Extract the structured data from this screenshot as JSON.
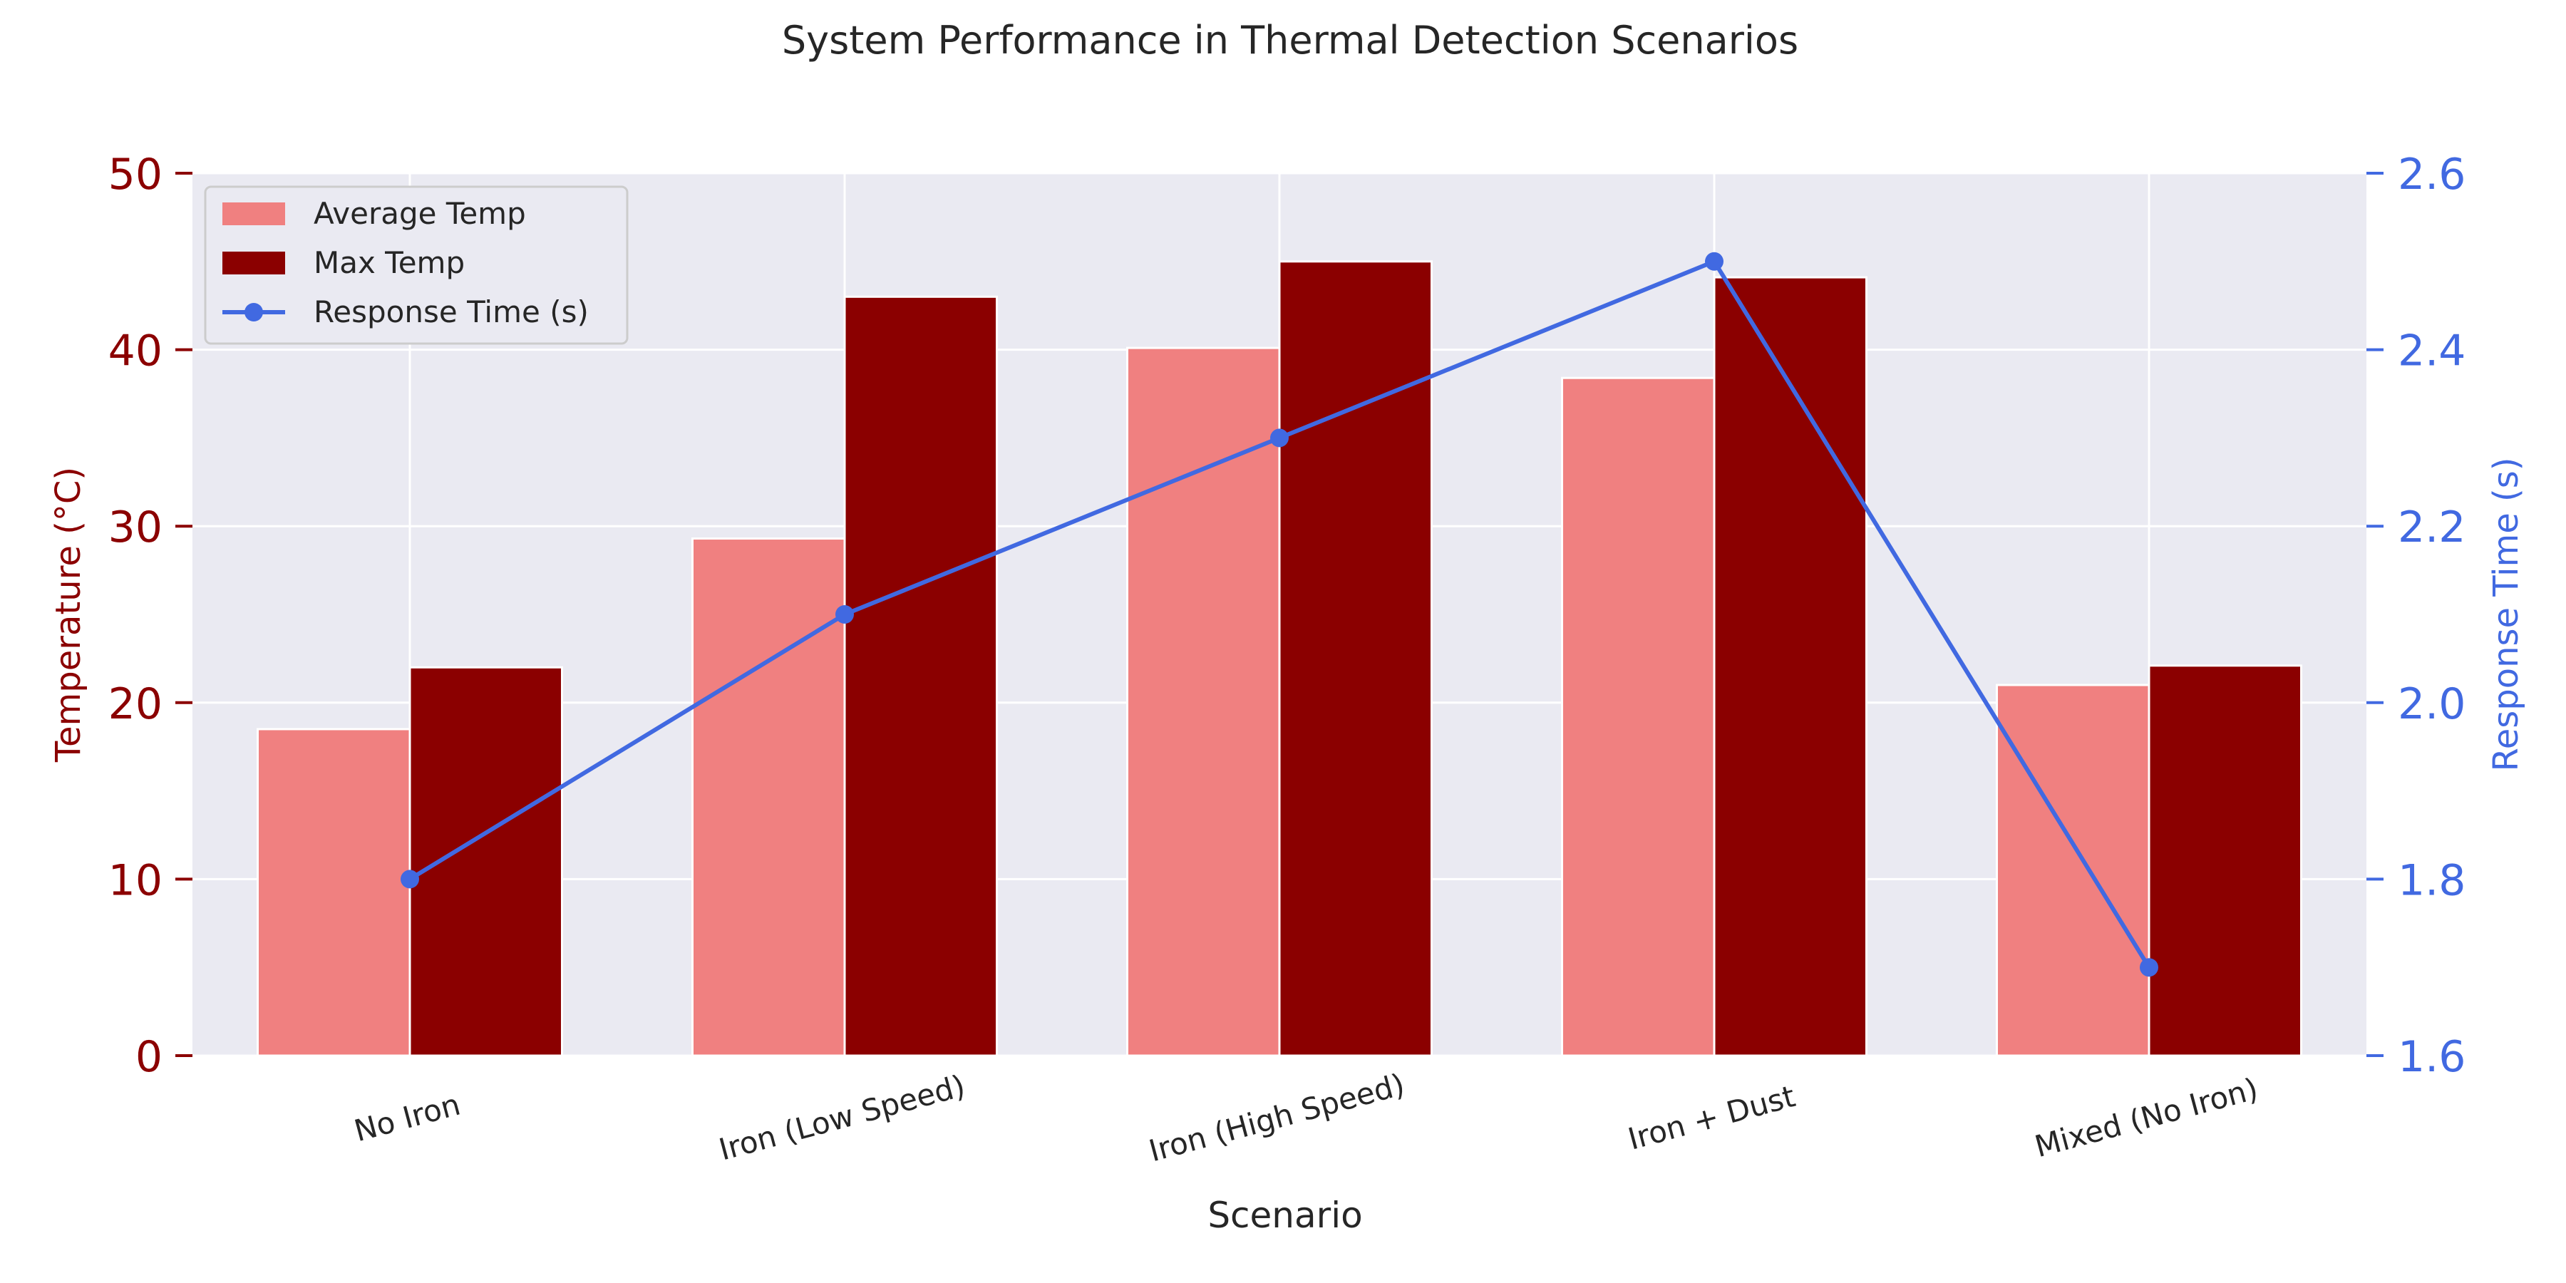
{
  "chart_data": {
    "type": "bar",
    "title": "System Performance in Thermal Detection Scenarios",
    "xlabel": "Scenario",
    "ylabel": "Temperature (°C)",
    "ylabel_right": "Response Time (s)",
    "categories": [
      "No Iron",
      "Iron (Low Speed)",
      "Iron (High Speed)",
      "Iron + Dust",
      "Mixed (No Iron)"
    ],
    "series": [
      {
        "name": "Average Temp",
        "type": "bar",
        "axis": "left",
        "color": "#f08080",
        "values": [
          18.5,
          29.3,
          40.1,
          38.4,
          21.0
        ]
      },
      {
        "name": "Max Temp",
        "type": "bar",
        "axis": "left",
        "color": "#8b0000",
        "values": [
          22.0,
          43.0,
          45.0,
          44.1,
          22.1
        ]
      },
      {
        "name": "Response Time (s)",
        "type": "line",
        "axis": "right",
        "color": "#4169e1",
        "values": [
          1.8,
          2.1,
          2.3,
          2.5,
          1.7
        ]
      }
    ],
    "ylim": [
      0,
      50
    ],
    "yticks": [
      "0",
      "10",
      "20",
      "30",
      "40",
      "50"
    ],
    "ylim_right": [
      1.6,
      2.6
    ],
    "yticks_right": [
      "1.6",
      "1.8",
      "2.0",
      "2.2",
      "2.4",
      "2.6"
    ],
    "grid": true,
    "legend_position": "top-left",
    "colors": {
      "plot_background": "#eaeaf2",
      "grid": "#ffffff",
      "left_axis": "#8b0000",
      "right_axis": "#4169e1",
      "text": "#262626"
    }
  }
}
